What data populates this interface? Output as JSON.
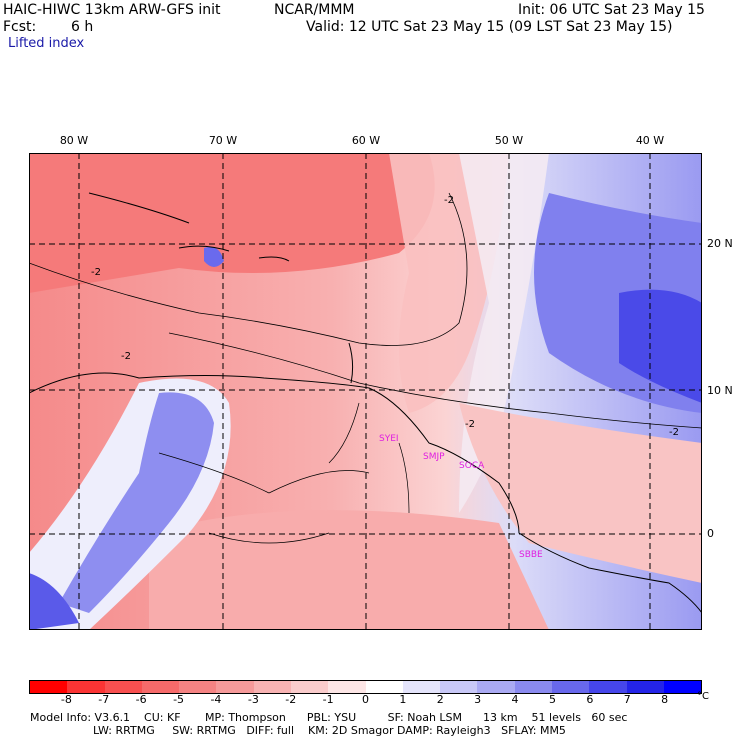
{
  "header": {
    "model": "HAIC-HIWC 13km ARW-GFS init",
    "center": "NCAR/MMM",
    "init": "Init: 06 UTC Sat 23 May 15",
    "fcst_label": "Fcst:",
    "fcst_value": "6 h",
    "valid": "Valid: 12 UTC Sat 23 May 15 (09 LST Sat 23 May 15)",
    "field": "Lifted index"
  },
  "map": {
    "lon_labels": [
      "80 W",
      "70 W",
      "60 W",
      "50 W",
      "40 W"
    ],
    "lat_labels": [
      "20 N",
      "10 N",
      "0"
    ],
    "contour_labels": [
      "-2",
      "-2",
      "-2",
      "-2",
      "-2"
    ],
    "stations": [
      "SYEI",
      "SMJP",
      "SOCA",
      "SBBE"
    ]
  },
  "colorbar": {
    "labels": [
      "-8",
      "-7",
      "-6",
      "-5",
      "-4",
      "-3",
      "-2",
      "-1",
      "0",
      "1",
      "2",
      "3",
      "4",
      "5",
      "6",
      "7",
      "8"
    ],
    "unit": "°C",
    "colors": [
      "#ff0000",
      "#fb3434",
      "#f85050",
      "#f66a6a",
      "#f58383",
      "#f69a9a",
      "#f8b3b3",
      "#facccc",
      "#fde6e6",
      "#ffffff",
      "#e4e4fb",
      "#c8c8f7",
      "#aaaaf3",
      "#8a8aef",
      "#6868ec",
      "#4646ea",
      "#2424e8",
      "#0000ff"
    ]
  },
  "footer": {
    "line1": "Model Info: V3.6.1    CU: KF       MP: Thompson      PBL: YSU         SF: Noah LSM      13 km    51 levels   60 sec",
    "line2": "                  LW: RRTMG     SW: RRTMG   DIFF: full    KM: 2D Smagor DAMP: Rayleigh3   SFLAY: MM5"
  }
}
